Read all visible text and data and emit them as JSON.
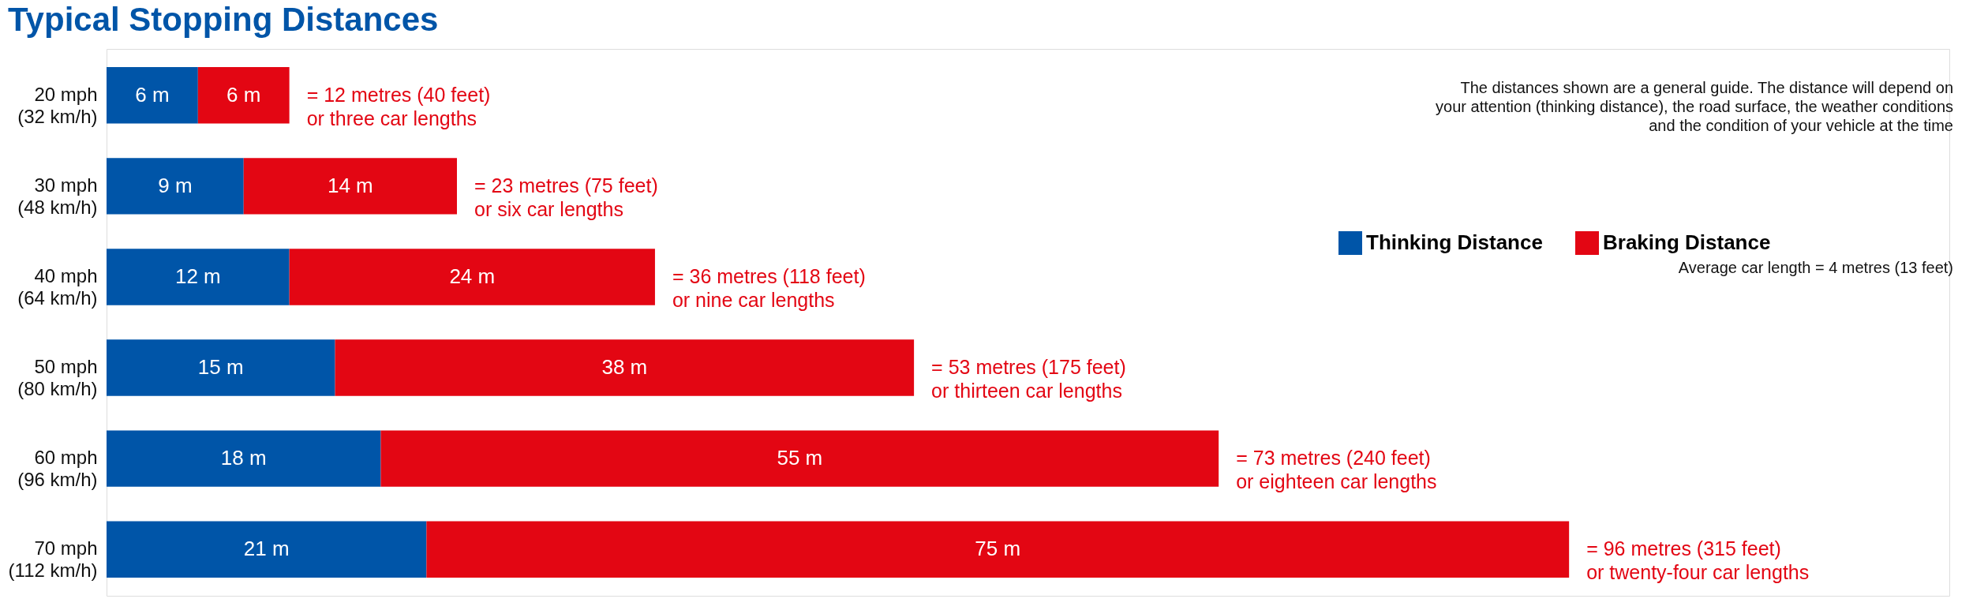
{
  "chart_data": {
    "type": "bar",
    "orientation": "horizontal",
    "stacked": true,
    "title": "Typical Stopping Distances",
    "categories": [
      "20 mph\n(32 km/h)",
      "30 mph\n(48 km/h)",
      "40 mph\n(64 km/h)",
      "50 mph\n(80 km/h)",
      "60 mph\n(96 km/h)",
      "70 mph\n(112 km/h)"
    ],
    "series": [
      {
        "name": "Thinking Distance",
        "color": "#0055a8",
        "values": [
          6,
          9,
          12,
          15,
          18,
          21
        ],
        "value_labels": [
          "6 m",
          "9 m",
          "12 m",
          "15 m",
          "18 m",
          "21 m"
        ]
      },
      {
        "name": "Braking Distance",
        "color": "#e30613",
        "values": [
          6,
          14,
          24,
          38,
          55,
          75
        ],
        "value_labels": [
          "6 m",
          "14 m",
          "24 m",
          "38 m",
          "55 m",
          "75 m"
        ]
      }
    ],
    "totals": [
      "= 12 metres (40 feet)\nor three car lengths",
      "= 23 metres (75 feet)\nor six car lengths",
      "= 36 metres (118 feet)\nor nine car lengths",
      "= 53 metres (175 feet)\nor thirteen car lengths",
      "= 73 metres (240 feet)\nor eighteen car lengths",
      "= 96 metres (315 feet)\nor twenty-four car lengths"
    ],
    "annotations": [
      "The distances shown are a general guide. The distance will depend on\nyour attention (thinking distance), the road surface, the weather conditions\nand the condition of your vehicle at the time",
      "Average car length = 4 metres (13 feet)"
    ],
    "legend": "top right",
    "grid": false,
    "tick_labels": "y"
  }
}
